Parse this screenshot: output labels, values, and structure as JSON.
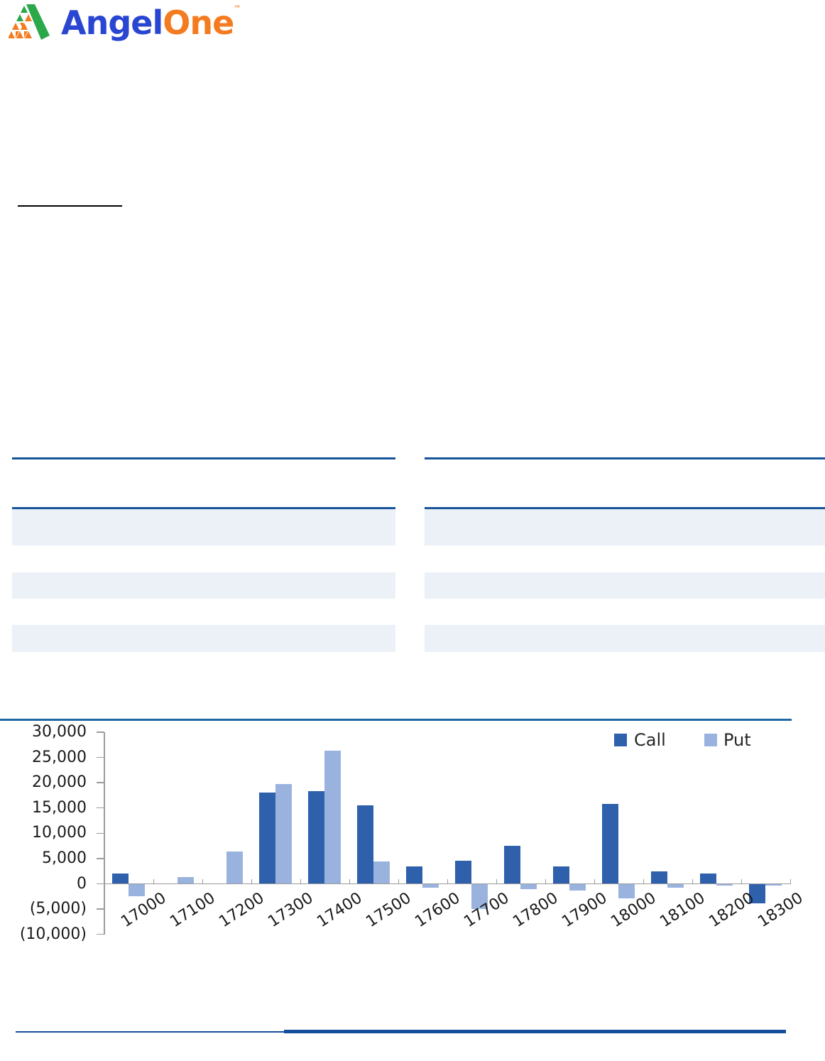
{
  "logo": {
    "brand_part1": "Angel",
    "brand_part2": "One",
    "trademark": "™"
  },
  "chart_data": {
    "type": "bar",
    "title": "",
    "xlabel": "",
    "ylabel": "",
    "categories": [
      "17000",
      "17100",
      "17200",
      "17300",
      "17400",
      "17500",
      "17600",
      "17700",
      "17800",
      "17900",
      "18000",
      "18100",
      "18200",
      "18300"
    ],
    "series": [
      {
        "name": "Call",
        "values": [
          2000,
          0,
          0,
          18000,
          18300,
          15500,
          3400,
          4600,
          7500,
          3500,
          15800,
          2500,
          2100,
          -3800
        ]
      },
      {
        "name": "Put",
        "values": [
          -2300,
          1300,
          6400,
          19800,
          26300,
          4400,
          -600,
          -4900,
          -1000,
          -1200,
          -2700,
          -600,
          -300,
          -200
        ]
      }
    ],
    "ylim": [
      -10000,
      30000
    ],
    "ytick_step": 5000,
    "ytick_labels": [
      "30,000",
      "25,000",
      "20,000",
      "15,000",
      "10,000",
      "5,000",
      "0",
      "(5,000)",
      "(10,000)"
    ],
    "legend_position": "top-right",
    "grid": false
  },
  "colors": {
    "logo_blue": "#2946D2",
    "logo_orange": "#F47B20",
    "logo_green": "#2BA84A",
    "heading_rule": "#000000",
    "table_rule": "#17549B",
    "row_shade": "#EBF1F7",
    "chart_divider": "#2166A5",
    "footer_line": "#134E9B",
    "call": "#2E60AC",
    "put": "#9AB3DE",
    "axis": "#9B9B9B",
    "tick_text": "#1A1A1A"
  }
}
